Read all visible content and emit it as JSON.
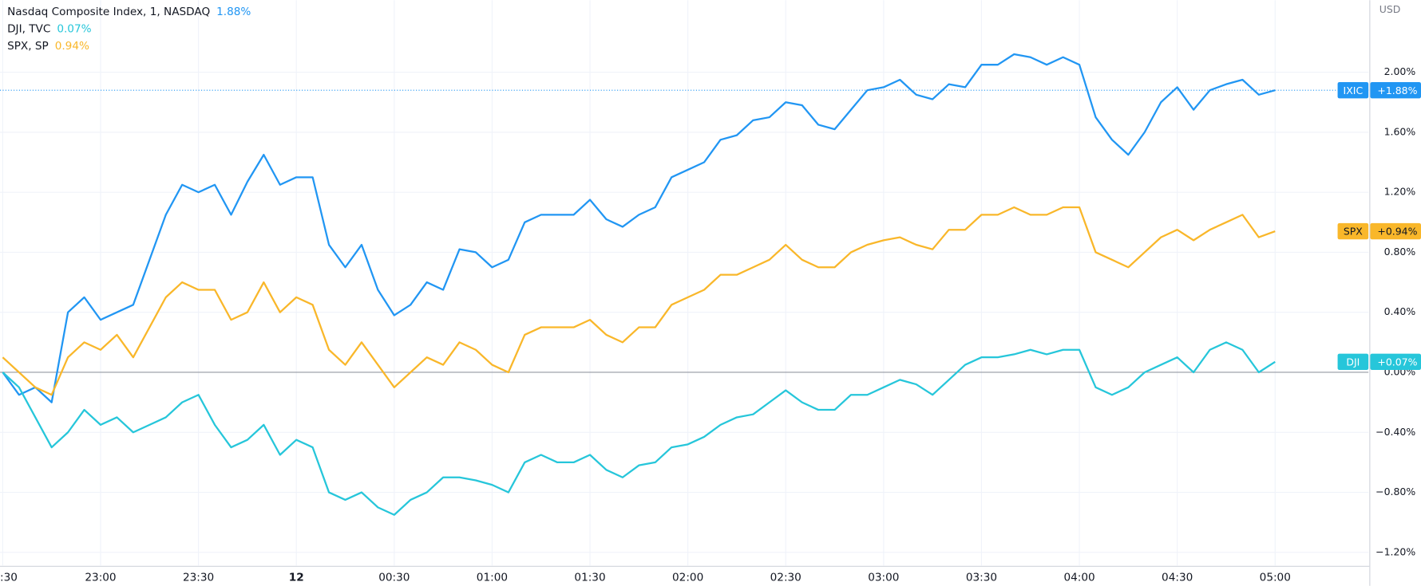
{
  "chart_data": {
    "type": "line",
    "axis_title": "USD",
    "x": [
      0,
      5,
      10,
      15,
      20,
      25,
      30,
      35,
      40,
      45,
      50,
      55,
      60,
      65,
      70,
      75,
      80,
      85,
      90,
      95,
      100,
      105,
      110,
      115,
      120,
      125,
      130,
      135,
      140,
      145,
      150,
      155,
      160,
      165,
      170,
      175,
      180,
      185,
      190,
      195,
      200,
      205,
      210,
      215,
      220,
      225,
      230,
      235,
      240,
      245,
      250,
      255,
      260,
      265,
      270,
      275,
      280,
      285,
      290,
      295,
      300,
      305,
      310,
      315,
      320,
      325,
      330,
      335,
      340,
      345,
      350,
      355,
      360,
      365,
      370,
      375,
      380,
      385,
      390
    ],
    "xlim": [
      -0.83,
      418.6
    ],
    "xticks": [
      {
        "value": 0,
        "label": ":30"
      },
      {
        "value": 30,
        "label": "23:00"
      },
      {
        "value": 60,
        "label": "23:30"
      },
      {
        "value": 90,
        "label": "12"
      },
      {
        "value": 120,
        "label": "00:30"
      },
      {
        "value": 150,
        "label": "01:00"
      },
      {
        "value": 180,
        "label": "01:30"
      },
      {
        "value": 210,
        "label": "02:00"
      },
      {
        "value": 240,
        "label": "02:30"
      },
      {
        "value": 270,
        "label": "03:00"
      },
      {
        "value": 300,
        "label": "03:30"
      },
      {
        "value": 330,
        "label": "04:00"
      },
      {
        "value": 360,
        "label": "04:30"
      },
      {
        "value": 390,
        "label": "05:00"
      }
    ],
    "ylim": [
      -1.29,
      2.48
    ],
    "yticks": [
      {
        "value": -1.2,
        "label": "−1.20%"
      },
      {
        "value": -0.8,
        "label": "−0.80%"
      },
      {
        "value": -0.4,
        "label": "−0.40%"
      },
      {
        "value": 0,
        "label": "0.00%"
      },
      {
        "value": 0.4,
        "label": "0.40%"
      },
      {
        "value": 0.8,
        "label": "0.80%"
      },
      {
        "value": 1.2,
        "label": "1.20%"
      },
      {
        "value": 1.6,
        "label": "1.60%"
      },
      {
        "value": 2.0,
        "label": "2.00%"
      }
    ],
    "grid": true,
    "series": [
      {
        "name": "Nasdaq Composite Index, 1, NASDAQ",
        "short_name": "IXIC",
        "color": "#2196f3",
        "legend_label": "1.88%",
        "last_value": 1.88,
        "last_label": "+1.88%",
        "price_line": true,
        "values": [
          0.0,
          -0.15,
          -0.1,
          -0.2,
          0.4,
          0.5,
          0.35,
          0.4,
          0.45,
          0.75,
          1.05,
          1.25,
          1.2,
          1.25,
          1.05,
          1.27,
          1.45,
          1.25,
          1.3,
          1.3,
          0.85,
          0.7,
          0.85,
          0.55,
          0.38,
          0.45,
          0.6,
          0.55,
          0.82,
          0.8,
          0.7,
          0.75,
          1.0,
          1.05,
          1.05,
          1.05,
          1.15,
          1.02,
          0.97,
          1.05,
          1.1,
          1.3,
          1.35,
          1.4,
          1.55,
          1.58,
          1.68,
          1.7,
          1.8,
          1.78,
          1.65,
          1.62,
          1.75,
          1.88,
          1.9,
          1.95,
          1.85,
          1.82,
          1.92,
          1.9,
          2.05,
          2.05,
          2.12,
          2.1,
          2.05,
          2.1,
          2.05,
          1.7,
          1.55,
          1.45,
          1.6,
          1.8,
          1.9,
          1.75,
          1.88,
          1.92,
          1.95,
          1.85,
          1.88
        ]
      },
      {
        "name": "DJI, TVC",
        "short_name": "DJI",
        "color": "#26c6da",
        "legend_label": "0.07%",
        "last_value": 0.07,
        "last_label": "+0.07%",
        "price_line": false,
        "values": [
          0.0,
          -0.1,
          -0.3,
          -0.5,
          -0.4,
          -0.25,
          -0.35,
          -0.3,
          -0.4,
          -0.35,
          -0.3,
          -0.2,
          -0.15,
          -0.35,
          -0.5,
          -0.45,
          -0.35,
          -0.55,
          -0.45,
          -0.5,
          -0.8,
          -0.85,
          -0.8,
          -0.9,
          -0.95,
          -0.85,
          -0.8,
          -0.7,
          -0.7,
          -0.72,
          -0.75,
          -0.8,
          -0.6,
          -0.55,
          -0.6,
          -0.6,
          -0.55,
          -0.65,
          -0.7,
          -0.62,
          -0.6,
          -0.5,
          -0.48,
          -0.43,
          -0.35,
          -0.3,
          -0.28,
          -0.2,
          -0.12,
          -0.2,
          -0.25,
          -0.25,
          -0.15,
          -0.15,
          -0.1,
          -0.05,
          -0.08,
          -0.15,
          -0.05,
          0.05,
          0.1,
          0.1,
          0.12,
          0.15,
          0.12,
          0.15,
          0.15,
          -0.1,
          -0.15,
          -0.1,
          0.0,
          0.05,
          0.1,
          0.0,
          0.15,
          0.2,
          0.15,
          0.0,
          0.07
        ]
      },
      {
        "name": "SPX, SP",
        "short_name": "SPX",
        "color": "#f9b72a",
        "legend_label": "0.94%",
        "last_value": 0.94,
        "last_label": "+0.94%",
        "price_line": false,
        "values": [
          0.1,
          0.0,
          -0.1,
          -0.15,
          0.1,
          0.2,
          0.15,
          0.25,
          0.1,
          0.3,
          0.5,
          0.6,
          0.55,
          0.55,
          0.35,
          0.4,
          0.6,
          0.4,
          0.5,
          0.45,
          0.15,
          0.05,
          0.2,
          0.05,
          -0.1,
          0.0,
          0.1,
          0.05,
          0.2,
          0.15,
          0.05,
          0.0,
          0.25,
          0.3,
          0.3,
          0.3,
          0.35,
          0.25,
          0.2,
          0.3,
          0.3,
          0.45,
          0.5,
          0.55,
          0.65,
          0.65,
          0.7,
          0.75,
          0.85,
          0.75,
          0.7,
          0.7,
          0.8,
          0.85,
          0.88,
          0.9,
          0.85,
          0.82,
          0.95,
          0.95,
          1.05,
          1.05,
          1.1,
          1.05,
          1.05,
          1.1,
          1.1,
          0.8,
          0.75,
          0.7,
          0.8,
          0.9,
          0.95,
          0.88,
          0.95,
          1.0,
          1.05,
          0.9,
          0.94
        ]
      }
    ]
  }
}
